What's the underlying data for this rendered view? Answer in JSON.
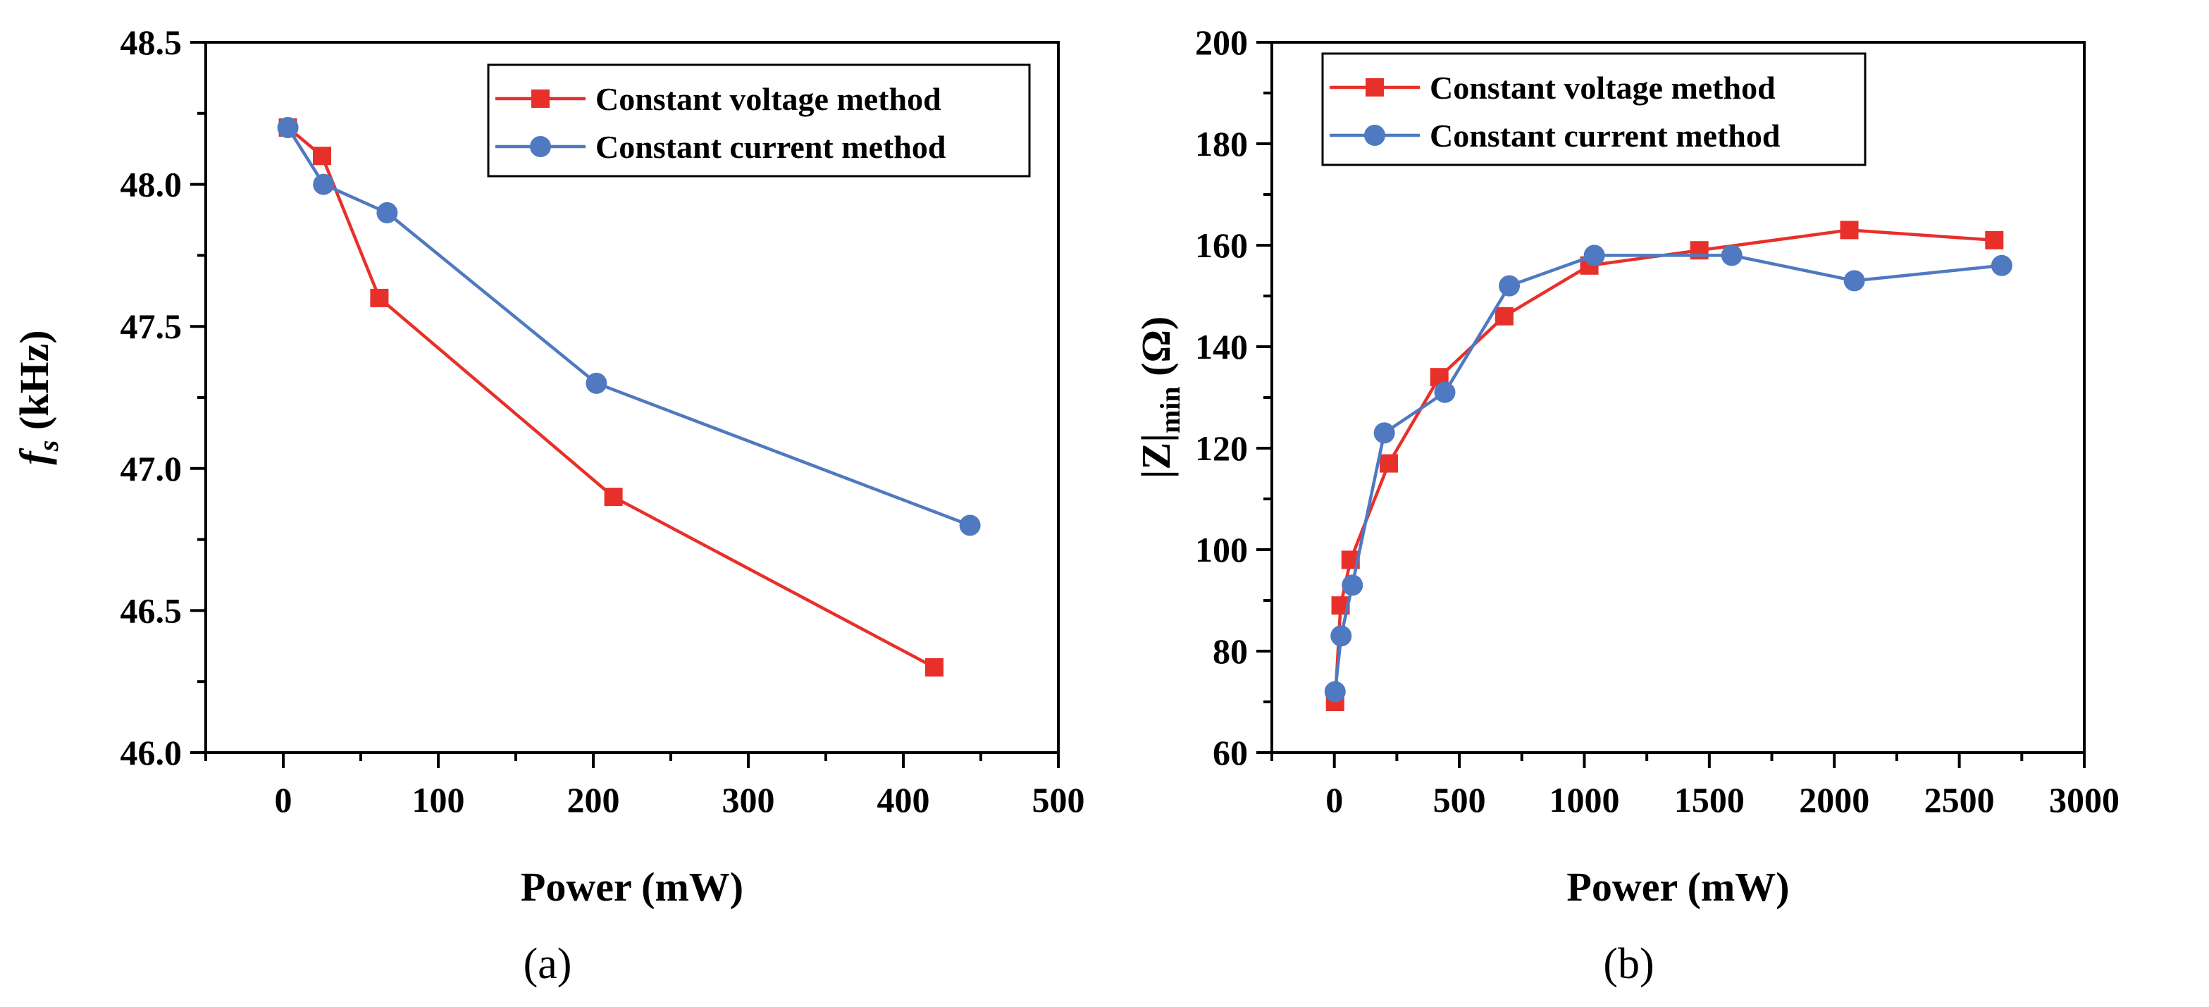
{
  "chart_data": [
    {
      "type": "line",
      "panel_label": "(a)",
      "title": "",
      "xlabel": "Power (mW)",
      "ylabel_main": "f",
      "ylabel_sub": "s",
      "ylabel_unit": " (kHz)",
      "xlim": [
        -50,
        500
      ],
      "ylim": [
        46.0,
        48.5
      ],
      "xticks": [
        0,
        100,
        200,
        300,
        400,
        500
      ],
      "yticks": [
        46.0,
        46.5,
        47.0,
        47.5,
        48.0,
        48.5
      ],
      "xtick_labels": [
        "0",
        "100",
        "200",
        "300",
        "400",
        "500"
      ],
      "ytick_labels": [
        "46.0",
        "46.5",
        "47.0",
        "47.5",
        "48.0",
        "48.5"
      ],
      "legend_position": "top-right",
      "series": [
        {
          "name": "Constant voltage method",
          "color": "#e8302a",
          "marker": "square",
          "x": [
            3,
            25,
            62,
            213,
            420
          ],
          "y": [
            48.2,
            48.1,
            47.6,
            46.9,
            46.3
          ]
        },
        {
          "name": "Constant current method",
          "color": "#4f79c0",
          "marker": "circle",
          "x": [
            3,
            26,
            67,
            202,
            443
          ],
          "y": [
            48.2,
            48.0,
            47.9,
            47.3,
            46.8
          ]
        }
      ]
    },
    {
      "type": "line",
      "panel_label": "(b)",
      "title": "",
      "xlabel": "Power (mW)",
      "ylabel_main": "|Z|",
      "ylabel_sub": "min",
      "ylabel_unit": " (Ω)",
      "xlim": [
        -250,
        3000
      ],
      "ylim": [
        60,
        200
      ],
      "xticks": [
        0,
        500,
        1000,
        1500,
        2000,
        2500,
        3000
      ],
      "yticks": [
        60,
        80,
        100,
        120,
        140,
        160,
        180,
        200
      ],
      "xtick_labels": [
        "0",
        "500",
        "1000",
        "1500",
        "2000",
        "2500",
        "3000"
      ],
      "ytick_labels": [
        "60",
        "80",
        "100",
        "120",
        "140",
        "160",
        "180",
        "200"
      ],
      "legend_position": "top-left",
      "series": [
        {
          "name": "Constant voltage method",
          "color": "#e8302a",
          "marker": "square",
          "x": [
            3,
            25,
            65,
            218,
            420,
            680,
            1020,
            1460,
            2060,
            2640
          ],
          "y": [
            70,
            89,
            98,
            117,
            134,
            146,
            156,
            159,
            163,
            161
          ]
        },
        {
          "name": "Constant current method",
          "color": "#4f79c0",
          "marker": "circle",
          "x": [
            3,
            27,
            72,
            200,
            442,
            700,
            1040,
            1590,
            2080,
            2670
          ],
          "y": [
            72,
            83,
            93,
            123,
            131,
            152,
            158,
            158,
            153,
            156
          ]
        }
      ]
    }
  ]
}
